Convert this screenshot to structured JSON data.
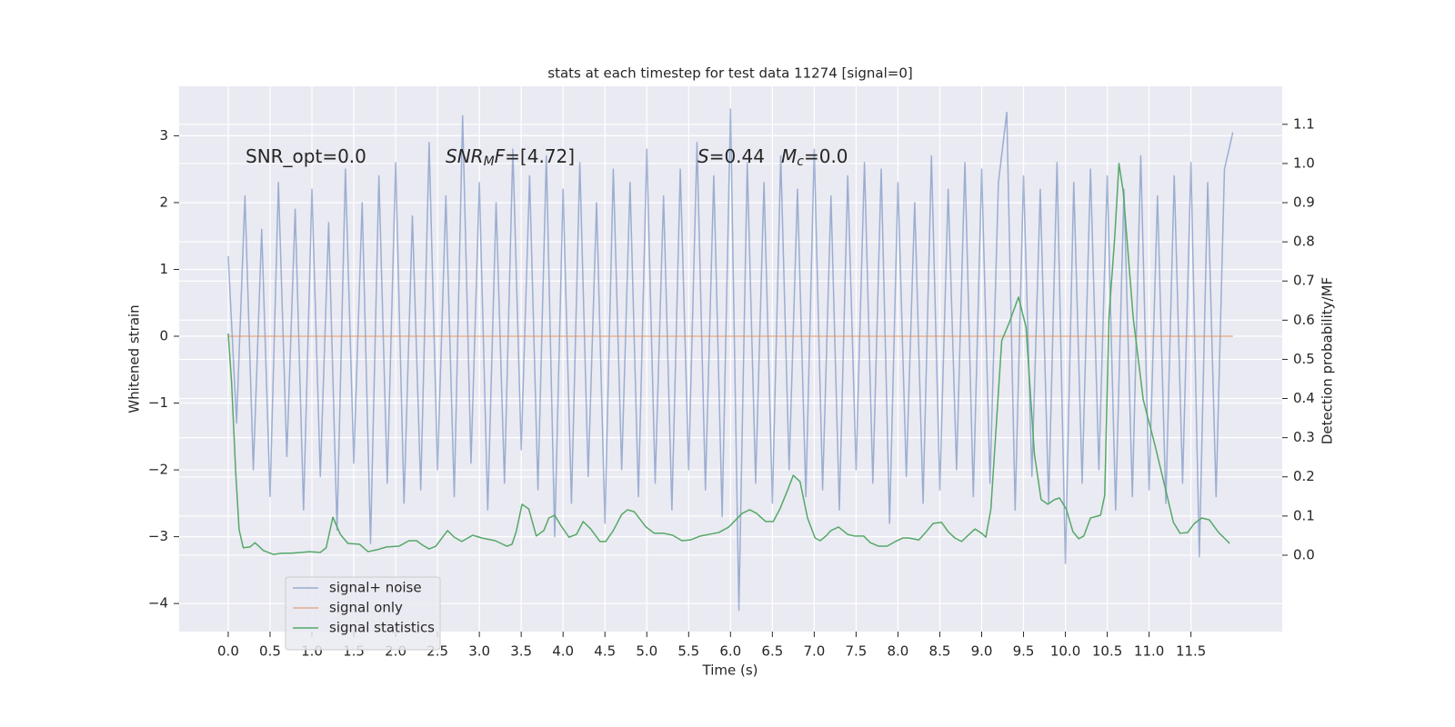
{
  "chart_data": {
    "type": "line",
    "title": "stats at each timestep for test data 11274 [signal=0]",
    "xlabel": "Time (s)",
    "ylabel": "Whitened strain",
    "y2label": "Detection probability/MF",
    "annotations": [
      {
        "parts": [
          {
            "text": "SNR_opt=0.0"
          }
        ]
      },
      {
        "parts": [
          {
            "text": "SNR",
            "style": "italic"
          },
          {
            "text": "M",
            "style": "sub"
          },
          {
            "text": "F",
            "style": "italic"
          },
          {
            "text": "=[4.72]"
          }
        ]
      },
      {
        "parts": [
          {
            "text": "S",
            "style": "italic"
          },
          {
            "text": "=0.44"
          }
        ]
      },
      {
        "parts": [
          {
            "text": "M",
            "style": "italic"
          },
          {
            "text": "c",
            "style": "sub"
          },
          {
            "text": "=0.0"
          }
        ]
      }
    ],
    "xlim": [
      -0.586,
      12.59
    ],
    "ylim": [
      -4.42,
      3.74
    ],
    "y2lim": [
      -0.195,
      1.197
    ],
    "xticks": [
      {
        "value": 0,
        "label": "0.0"
      },
      0.5,
      {
        "value": 1,
        "label": "1.0"
      },
      1.5,
      {
        "value": 2,
        "label": "2.0"
      },
      2.5,
      {
        "value": 3,
        "label": "3.0"
      },
      3.5,
      {
        "value": 4,
        "label": "4.0"
      },
      4.5,
      {
        "value": 5,
        "label": "5.0"
      },
      5.5,
      {
        "value": 6,
        "label": "6.0"
      },
      6.5,
      {
        "value": 7,
        "label": "7.0"
      },
      7.5,
      {
        "value": 8,
        "label": "8.0"
      },
      8.5,
      {
        "value": 9,
        "label": "9.0"
      },
      9.5,
      {
        "value": 10,
        "label": "10.0"
      },
      10.5,
      {
        "value": 11,
        "label": "11.0"
      },
      11.5
    ],
    "yticks": [
      {
        "value": -4,
        "label": "−4"
      },
      {
        "value": -3,
        "label": "−3"
      },
      {
        "value": -2,
        "label": "−2"
      },
      {
        "value": -1,
        "label": "−1"
      },
      0,
      1,
      2,
      3
    ],
    "y2ticks": [
      {
        "value": 0,
        "label": "0.0"
      },
      0.1,
      0.2,
      0.3,
      0.4,
      0.5,
      0.6,
      0.7,
      0.8,
      0.9,
      {
        "value": 1,
        "label": "1.0"
      },
      1.1
    ],
    "grid": true,
    "legend": "lower left",
    "series": [
      {
        "name": "signal+ noise",
        "color": "#4c72b0",
        "alpha": 0.5,
        "x": [
          0.0,
          0.1,
          0.2,
          0.3,
          0.4,
          0.5,
          0.6,
          0.7,
          0.8,
          0.9,
          1.0,
          1.1,
          1.2,
          1.3,
          1.4,
          1.5,
          1.6,
          1.7,
          1.8,
          1.9,
          2.0,
          2.1,
          2.2,
          2.3,
          2.4,
          2.5,
          2.6,
          2.7,
          2.8,
          2.9,
          3.0,
          3.1,
          3.2,
          3.3,
          3.4,
          3.5,
          3.6,
          3.7,
          3.8,
          3.9,
          4.0,
          4.1,
          4.2,
          4.3,
          4.4,
          4.5,
          4.6,
          4.7,
          4.8,
          4.9,
          5.0,
          5.1,
          5.2,
          5.3,
          5.4,
          5.5,
          5.6,
          5.7,
          5.8,
          5.9,
          6.0,
          6.1,
          6.2,
          6.3,
          6.4,
          6.5,
          6.6,
          6.7,
          6.8,
          6.9,
          7.0,
          7.1,
          7.2,
          7.3,
          7.4,
          7.5,
          7.6,
          7.7,
          7.8,
          7.9,
          8.0,
          8.1,
          8.2,
          8.3,
          8.4,
          8.5,
          8.6,
          8.7,
          8.8,
          8.9,
          9.0,
          9.1,
          9.2,
          9.3,
          9.4,
          9.5,
          9.6,
          9.7,
          9.8,
          9.9,
          10.0,
          10.1,
          10.2,
          10.3,
          10.4,
          10.5,
          10.6,
          10.7,
          10.8,
          10.9,
          11.0,
          11.1,
          11.2,
          11.3,
          11.4,
          11.5,
          11.6,
          11.7,
          11.8,
          11.9,
          12.0
        ],
        "values": [
          1.2,
          -1.3,
          2.1,
          -2.0,
          1.6,
          -2.4,
          2.3,
          -1.8,
          1.9,
          -2.6,
          2.2,
          -2.1,
          1.7,
          -2.9,
          2.5,
          -1.9,
          2.0,
          -3.1,
          2.4,
          -2.2,
          2.6,
          -2.5,
          1.8,
          -2.3,
          2.9,
          -2.0,
          2.1,
          -2.4,
          3.3,
          -1.9,
          2.3,
          -2.6,
          2.0,
          -2.2,
          2.8,
          -1.7,
          2.4,
          -2.3,
          2.7,
          -3.0,
          2.2,
          -2.5,
          2.6,
          -2.1,
          2.0,
          -2.8,
          2.5,
          -2.0,
          2.3,
          -2.4,
          2.8,
          -2.2,
          2.1,
          -2.6,
          2.5,
          -2.0,
          2.9,
          -2.3,
          2.4,
          -2.7,
          3.4,
          -4.1,
          2.6,
          -2.2,
          2.3,
          -2.5,
          2.7,
          -2.0,
          2.2,
          -2.4,
          2.8,
          -2.3,
          2.1,
          -2.6,
          2.4,
          -2.0,
          2.6,
          -2.2,
          2.5,
          -2.8,
          2.3,
          -2.1,
          2.0,
          -2.5,
          2.7,
          -2.3,
          2.2,
          -2.0,
          2.6,
          -2.4,
          2.5,
          -2.2,
          2.3,
          3.35,
          -2.6,
          2.4,
          -2.1,
          2.2,
          -2.5,
          2.6,
          -3.4,
          2.3,
          -2.2,
          2.5,
          -2.0,
          2.4,
          -2.6,
          2.2,
          -2.4,
          2.7,
          -2.3,
          2.1,
          -2.5,
          2.4,
          -2.2,
          2.6,
          -3.3,
          2.3,
          -2.4,
          2.5,
          3.05
        ]
      },
      {
        "name": "signal only",
        "color": "#dd8452",
        "alpha": 0.6,
        "x": [
          0,
          12
        ],
        "values": [
          0,
          0
        ]
      },
      {
        "name": "signal statistics",
        "color": "#55a868",
        "alpha": 1,
        "axis": "y2",
        "x": [
          0.0,
          0.04,
          0.09,
          0.13,
          0.18,
          0.26,
          0.32,
          0.42,
          0.54,
          0.64,
          0.75,
          0.97,
          1.1,
          1.17,
          1.25,
          1.34,
          1.43,
          1.57,
          1.67,
          1.78,
          1.89,
          2.04,
          2.16,
          2.25,
          2.32,
          2.4,
          2.48,
          2.62,
          2.7,
          2.79,
          2.92,
          3.03,
          3.19,
          3.33,
          3.39,
          3.44,
          3.51,
          3.59,
          3.68,
          3.77,
          3.83,
          3.9,
          3.97,
          4.07,
          4.16,
          4.24,
          4.33,
          4.44,
          4.51,
          4.6,
          4.7,
          4.77,
          4.85,
          4.99,
          5.09,
          5.2,
          5.31,
          5.42,
          5.52,
          5.64,
          5.86,
          5.98,
          6.14,
          6.23,
          6.31,
          6.42,
          6.51,
          6.59,
          6.68,
          6.75,
          6.83,
          6.92,
          7.01,
          7.07,
          7.14,
          7.2,
          7.29,
          7.4,
          7.48,
          7.59,
          7.67,
          7.77,
          7.87,
          7.97,
          8.06,
          8.13,
          8.25,
          8.33,
          8.42,
          8.52,
          8.6,
          8.68,
          8.76,
          8.85,
          8.92,
          9.0,
          9.05,
          9.11,
          9.18,
          9.24,
          9.33,
          9.44,
          9.53,
          9.63,
          9.71,
          9.79,
          9.87,
          9.93,
          10.01,
          10.09,
          10.16,
          10.22,
          10.3,
          10.42,
          10.47,
          10.52,
          10.59,
          10.64,
          10.69,
          10.81,
          10.93,
          11.07,
          11.2,
          11.29,
          11.37,
          11.46,
          11.54,
          11.63,
          11.72,
          11.83,
          11.94,
          11.96
        ],
        "values": [
          0.566,
          0.443,
          0.211,
          0.065,
          0.019,
          0.021,
          0.032,
          0.012,
          0.002,
          0.005,
          0.005,
          0.009,
          0.007,
          0.019,
          0.097,
          0.053,
          0.03,
          0.028,
          0.009,
          0.014,
          0.021,
          0.023,
          0.037,
          0.037,
          0.026,
          0.016,
          0.023,
          0.063,
          0.046,
          0.035,
          0.051,
          0.044,
          0.037,
          0.023,
          0.028,
          0.06,
          0.13,
          0.118,
          0.049,
          0.063,
          0.095,
          0.102,
          0.077,
          0.046,
          0.053,
          0.086,
          0.067,
          0.035,
          0.035,
          0.063,
          0.104,
          0.116,
          0.111,
          0.072,
          0.056,
          0.056,
          0.051,
          0.037,
          0.039,
          0.049,
          0.058,
          0.072,
          0.107,
          0.116,
          0.107,
          0.086,
          0.086,
          0.118,
          0.165,
          0.204,
          0.188,
          0.095,
          0.044,
          0.037,
          0.049,
          0.063,
          0.072,
          0.053,
          0.049,
          0.049,
          0.032,
          0.023,
          0.023,
          0.035,
          0.044,
          0.044,
          0.039,
          0.058,
          0.081,
          0.084,
          0.06,
          0.044,
          0.035,
          0.053,
          0.067,
          0.056,
          0.046,
          0.118,
          0.35,
          0.548,
          0.594,
          0.659,
          0.582,
          0.258,
          0.142,
          0.13,
          0.142,
          0.146,
          0.118,
          0.06,
          0.042,
          0.049,
          0.095,
          0.102,
          0.153,
          0.606,
          0.814,
          1.0,
          0.93,
          0.606,
          0.397,
          0.281,
          0.165,
          0.084,
          0.056,
          0.058,
          0.081,
          0.095,
          0.09,
          0.058,
          0.035,
          0.03
        ]
      }
    ]
  }
}
